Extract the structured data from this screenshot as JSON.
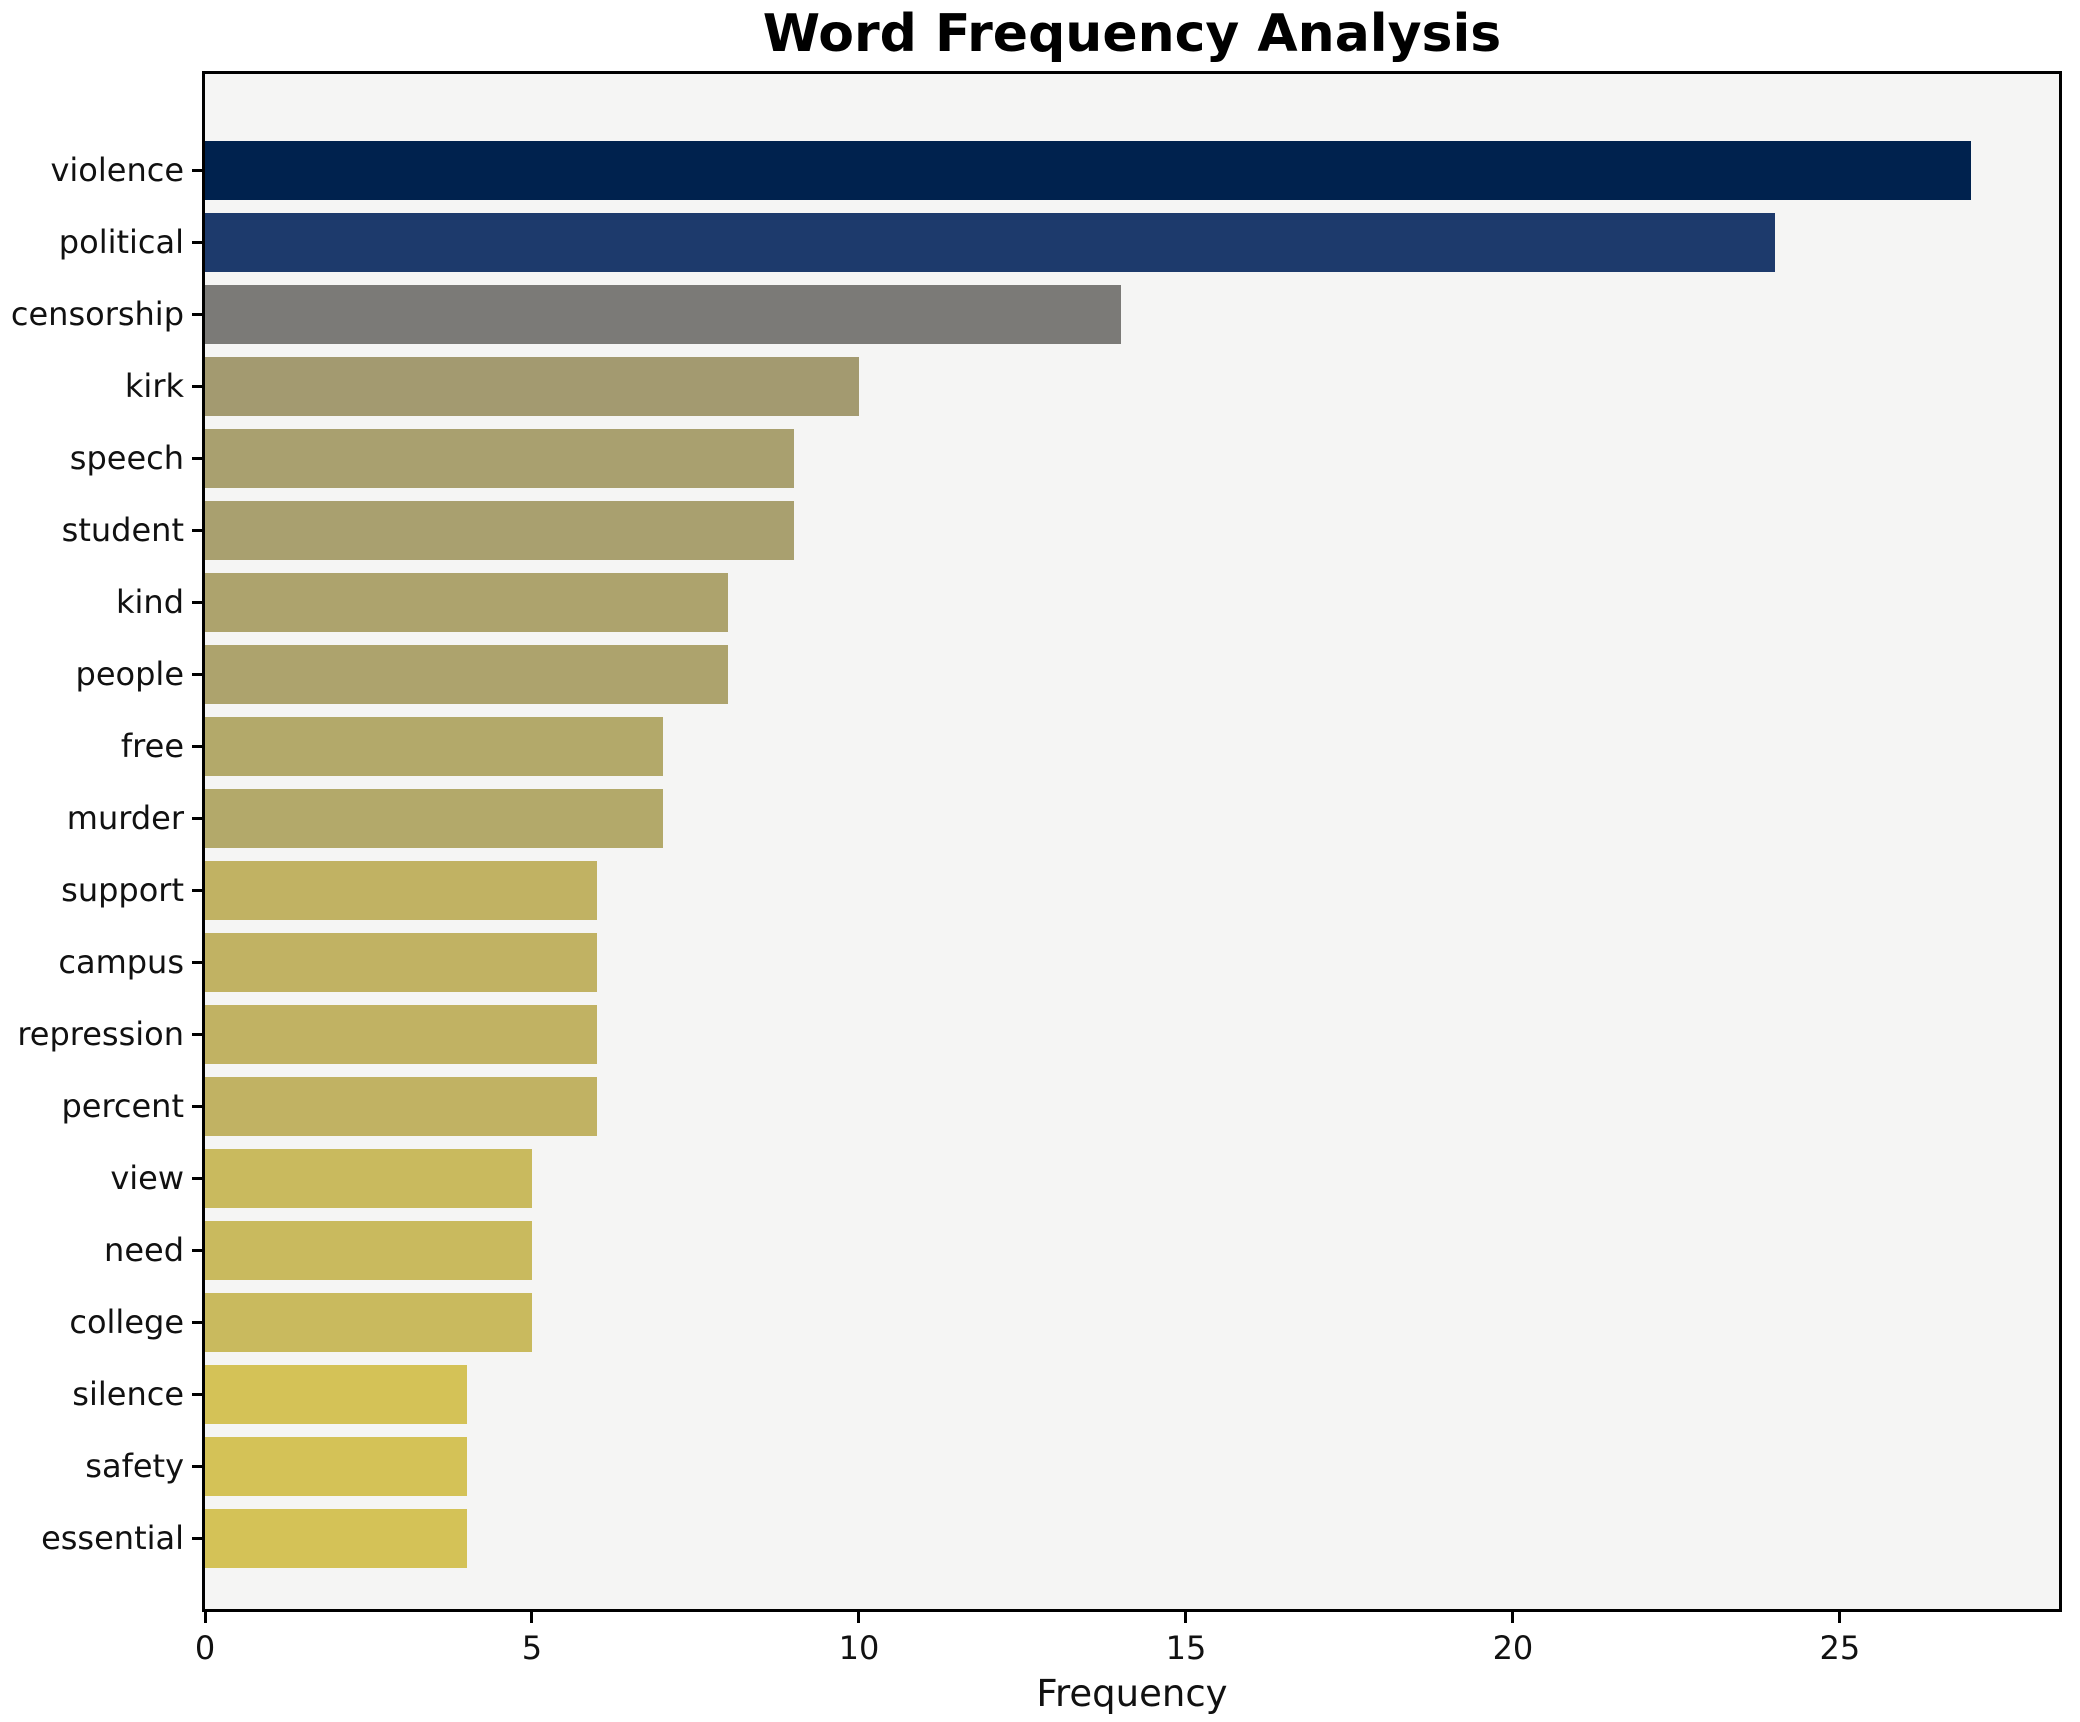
{
  "chart_data": {
    "type": "bar",
    "orientation": "horizontal",
    "title": "Word Frequency Analysis",
    "xlabel": "Frequency",
    "ylabel": "",
    "categories": [
      "violence",
      "political",
      "censorship",
      "kirk",
      "speech",
      "student",
      "kind",
      "people",
      "free",
      "murder",
      "support",
      "campus",
      "repression",
      "percent",
      "view",
      "need",
      "college",
      "silence",
      "safety",
      "essential"
    ],
    "values": [
      27,
      24,
      14,
      10,
      9,
      9,
      8,
      8,
      7,
      7,
      6,
      6,
      6,
      6,
      5,
      5,
      5,
      4,
      4,
      4
    ],
    "bar_colors": [
      "#00224e",
      "#1d3a6c",
      "#7b7a77",
      "#a39a70",
      "#a9a06f",
      "#a9a06f",
      "#ada36d",
      "#ada36d",
      "#b3a96a",
      "#b3a96a",
      "#c1b263",
      "#c1b263",
      "#c1b263",
      "#c1b263",
      "#c9ba5e",
      "#c9ba5e",
      "#c9ba5e",
      "#d4c257",
      "#d4c257",
      "#d4c257"
    ],
    "xlim": [
      0,
      28.35
    ],
    "xticks": [
      0,
      5,
      10,
      15,
      20,
      25
    ],
    "grid": false,
    "legend": null,
    "colormap": "cividis_r",
    "figure_bg": "#ffffff",
    "plot_bg": "#f5f5f4",
    "axis_color": "#000000",
    "text_color": "#111111"
  }
}
